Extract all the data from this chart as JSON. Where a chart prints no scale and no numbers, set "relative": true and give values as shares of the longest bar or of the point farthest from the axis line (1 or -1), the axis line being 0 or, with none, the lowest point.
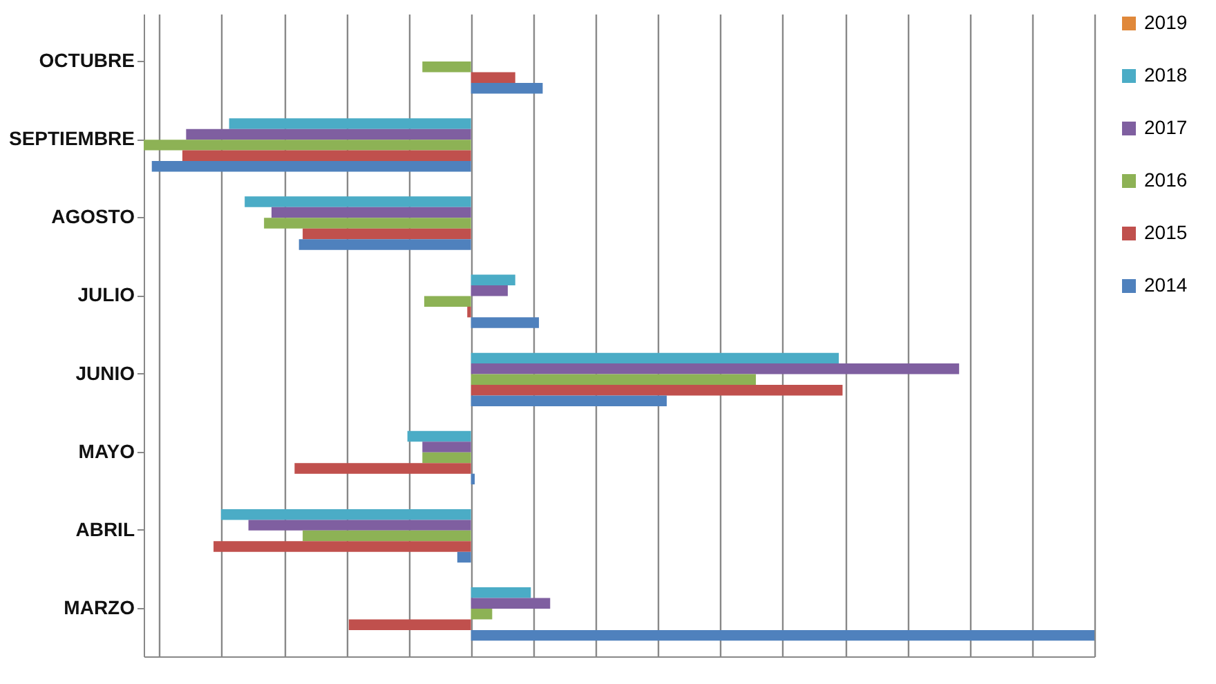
{
  "chart_data": {
    "type": "bar",
    "orientation": "horizontal",
    "relative": true,
    "grid": "x",
    "legend": "right",
    "categories": [
      "OCTUBRE",
      "SEPTIEMBRE",
      "AGOSTO",
      "JULIO",
      "JUNIO",
      "MAYO",
      "ABRIL",
      "MARZO"
    ],
    "series": [
      {
        "name": "2019",
        "color": "#e0883a",
        "values": [
          null,
          null,
          null,
          null,
          null,
          null,
          null,
          null
        ]
      },
      {
        "name": "2018",
        "color": "#4bacc6",
        "values": [
          null,
          -0.388,
          -0.363,
          0.071,
          0.59,
          -0.102,
          -0.401,
          0.096
        ]
      },
      {
        "name": "2017",
        "color": "#7f5fa0",
        "values": [
          null,
          -0.457,
          -0.32,
          0.059,
          0.783,
          -0.078,
          -0.357,
          0.127
        ]
      },
      {
        "name": "2016",
        "color": "#8db255",
        "values": [
          -0.078,
          -0.525,
          -0.332,
          -0.075,
          0.457,
          -0.078,
          -0.27,
          0.034
        ]
      },
      {
        "name": "2015",
        "color": "#c0504d",
        "values": [
          0.071,
          -0.463,
          -0.27,
          -0.006,
          0.596,
          -0.283,
          -0.413,
          -0.196
        ]
      },
      {
        "name": "2014",
        "color": "#4f81bd",
        "values": [
          0.115,
          -0.512,
          -0.276,
          0.109,
          0.314,
          0.006,
          -0.022,
          1
        ]
      }
    ]
  }
}
